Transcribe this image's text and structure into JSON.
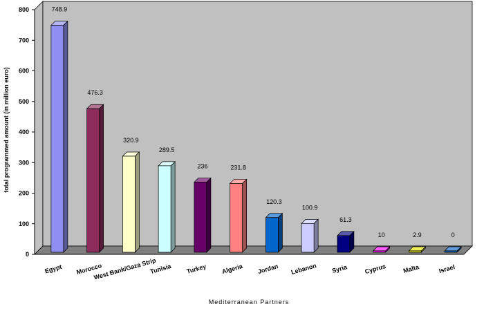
{
  "chart_data": {
    "type": "bar",
    "title": "",
    "xlabel": "Mediterranean Partners",
    "ylabel": "total programmed amount (in million euro)",
    "ylim": [
      0,
      800
    ],
    "yticks": [
      "0",
      "100",
      "200",
      "300",
      "400",
      "500",
      "600",
      "700",
      "800"
    ],
    "grid": false,
    "three_d": true,
    "categories": [
      "Egypt",
      "Morocco",
      "West Bank/Gaza Strip",
      "Tunisia",
      "Turkey",
      "Algeria",
      "Jordan",
      "Lebanon",
      "Syria",
      "Cyprus",
      "Malta",
      "Israel"
    ],
    "values": [
      748.9,
      476.3,
      320.9,
      289.5,
      236,
      231.8,
      120.3,
      100.9,
      61.3,
      10,
      2.9,
      0
    ],
    "value_labels": [
      "748.9",
      "476.3",
      "320.9",
      "289.5",
      "236",
      "231.8",
      "120.3",
      "100.9",
      "61.3",
      "10",
      "2.9",
      "0"
    ],
    "colors": [
      "#8f8ff2",
      "#8c2c5c",
      "#ffffc8",
      "#ccffff",
      "#660066",
      "#ff8080",
      "#0066cc",
      "#ccccff",
      "#000080",
      "#ff00ff",
      "#e6e600",
      "#0a64c8"
    ],
    "wall_color": "#c0c0c0",
    "floor_color": "#808080"
  }
}
